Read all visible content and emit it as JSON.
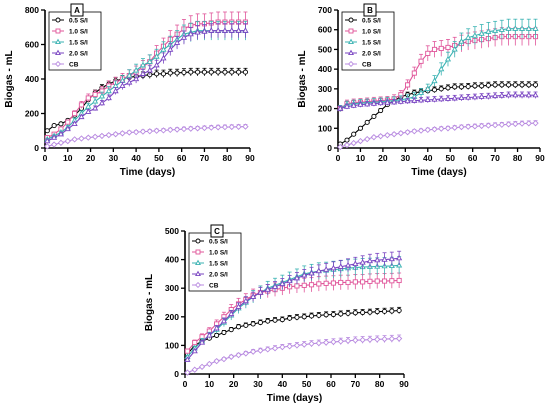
{
  "chart_data": [
    {
      "type": "line",
      "panel_label": "A",
      "xlabel": "Time (days)",
      "ylabel": "Biogas - mL",
      "xlim": [
        0,
        90
      ],
      "ylim": [
        0,
        800
      ],
      "xticks": [
        0,
        10,
        20,
        30,
        40,
        50,
        60,
        70,
        80,
        90
      ],
      "yticks": [
        0,
        200,
        400,
        600,
        800
      ],
      "legend_position": "top-left",
      "grid": false,
      "series": [
        {
          "name": "0.5 S/l",
          "color": "#000000",
          "x": [
            1,
            4,
            7,
            10,
            13,
            16,
            19,
            22,
            25,
            28,
            31,
            34,
            37,
            40,
            43,
            46,
            49,
            52,
            55,
            58,
            61,
            64,
            67,
            70,
            73,
            76,
            79,
            82,
            85,
            88
          ],
          "y": [
            100,
            130,
            140,
            160,
            190,
            230,
            280,
            320,
            350,
            370,
            390,
            400,
            410,
            415,
            420,
            425,
            430,
            430,
            435,
            435,
            438,
            440,
            440,
            440,
            440,
            440,
            440,
            440,
            440,
            440
          ]
        },
        {
          "name": "1.0 S/l",
          "color": "#e0559a",
          "x": [
            1,
            4,
            7,
            10,
            13,
            16,
            19,
            22,
            25,
            28,
            31,
            34,
            37,
            40,
            43,
            46,
            49,
            52,
            55,
            58,
            61,
            64,
            67,
            70,
            73,
            76,
            79,
            82,
            85,
            88
          ],
          "y": [
            60,
            80,
            110,
            150,
            200,
            250,
            290,
            310,
            330,
            360,
            380,
            400,
            420,
            440,
            470,
            500,
            550,
            590,
            630,
            660,
            690,
            710,
            720,
            720,
            725,
            730,
            730,
            730,
            730,
            730
          ]
        },
        {
          "name": "1.5 S/l",
          "color": "#3bb3b3",
          "x": [
            1,
            4,
            7,
            10,
            13,
            16,
            19,
            22,
            25,
            28,
            31,
            34,
            37,
            40,
            43,
            46,
            49,
            52,
            55,
            58,
            61,
            64,
            67,
            70,
            73,
            76,
            79,
            82,
            85,
            88
          ],
          "y": [
            50,
            70,
            90,
            120,
            160,
            200,
            240,
            270,
            300,
            330,
            360,
            390,
            420,
            450,
            480,
            500,
            530,
            570,
            600,
            630,
            660,
            670,
            680,
            680,
            680,
            680,
            680,
            680,
            680,
            680
          ]
        },
        {
          "name": "2.0 S/l",
          "color": "#7a45c2",
          "x": [
            1,
            4,
            7,
            10,
            13,
            16,
            19,
            22,
            25,
            28,
            31,
            34,
            37,
            40,
            43,
            46,
            49,
            52,
            55,
            58,
            61,
            64,
            67,
            70,
            73,
            76,
            79,
            82,
            85,
            88
          ],
          "y": [
            40,
            60,
            80,
            110,
            140,
            180,
            210,
            230,
            260,
            290,
            330,
            360,
            380,
            400,
            430,
            450,
            480,
            520,
            570,
            610,
            640,
            660,
            670,
            675,
            680,
            680,
            680,
            680,
            680,
            680
          ]
        },
        {
          "name": "CB",
          "color": "#b88ae0",
          "x": [
            1,
            4,
            7,
            10,
            13,
            16,
            19,
            22,
            25,
            28,
            31,
            34,
            37,
            40,
            43,
            46,
            49,
            52,
            55,
            58,
            61,
            64,
            67,
            70,
            73,
            76,
            79,
            82,
            85,
            88
          ],
          "y": [
            10,
            20,
            30,
            40,
            50,
            55,
            60,
            65,
            70,
            75,
            80,
            85,
            90,
            92,
            95,
            97,
            100,
            102,
            105,
            107,
            110,
            112,
            114,
            116,
            118,
            120,
            121,
            122,
            123,
            124
          ]
        }
      ]
    },
    {
      "type": "line",
      "panel_label": "B",
      "xlabel": "Time (days)",
      "ylabel": "Biogas - mL",
      "xlim": [
        0,
        90
      ],
      "ylim": [
        0,
        700
      ],
      "xticks": [
        0,
        10,
        20,
        30,
        40,
        50,
        60,
        70,
        80,
        90
      ],
      "yticks": [
        0,
        100,
        200,
        300,
        400,
        500,
        600,
        700
      ],
      "legend_position": "top-left",
      "grid": false,
      "series": [
        {
          "name": "0.5 S/l",
          "color": "#000000",
          "x": [
            1,
            4,
            7,
            10,
            13,
            16,
            19,
            22,
            25,
            28,
            31,
            34,
            37,
            40,
            43,
            46,
            49,
            52,
            55,
            58,
            61,
            64,
            67,
            70,
            73,
            76,
            79,
            82,
            85,
            88
          ],
          "y": [
            20,
            40,
            70,
            100,
            130,
            160,
            190,
            220,
            240,
            260,
            270,
            280,
            285,
            290,
            295,
            300,
            305,
            310,
            310,
            312,
            315,
            315,
            318,
            320,
            320,
            320,
            320,
            320,
            320,
            320
          ]
        },
        {
          "name": "1.0 S/l",
          "color": "#e0559a",
          "x": [
            1,
            4,
            7,
            10,
            13,
            16,
            19,
            22,
            25,
            28,
            31,
            34,
            37,
            40,
            43,
            46,
            49,
            52,
            55,
            58,
            61,
            64,
            67,
            70,
            73,
            76,
            79,
            82,
            85,
            88
          ],
          "y": [
            200,
            225,
            230,
            232,
            235,
            238,
            240,
            242,
            250,
            270,
            320,
            380,
            440,
            480,
            500,
            505,
            510,
            520,
            530,
            540,
            545,
            550,
            555,
            560,
            565,
            565,
            565,
            565,
            565,
            565
          ]
        },
        {
          "name": "1.5 S/l",
          "color": "#3bb3b3",
          "x": [
            1,
            4,
            7,
            10,
            13,
            16,
            19,
            22,
            25,
            28,
            31,
            34,
            37,
            40,
            43,
            46,
            49,
            52,
            55,
            58,
            61,
            64,
            67,
            70,
            73,
            76,
            79,
            82,
            85,
            88
          ],
          "y": [
            200,
            220,
            225,
            228,
            230,
            232,
            235,
            238,
            240,
            245,
            250,
            260,
            280,
            300,
            340,
            400,
            450,
            500,
            540,
            560,
            570,
            580,
            590,
            595,
            600,
            605,
            605,
            605,
            605,
            605
          ]
        },
        {
          "name": "2.0 S/l",
          "color": "#7a45c2",
          "x": [
            1,
            4,
            7,
            10,
            13,
            16,
            19,
            22,
            25,
            28,
            31,
            34,
            37,
            40,
            43,
            46,
            49,
            52,
            55,
            58,
            61,
            64,
            67,
            70,
            73,
            76,
            79,
            82,
            85,
            88
          ],
          "y": [
            200,
            210,
            215,
            220,
            222,
            225,
            228,
            230,
            232,
            235,
            238,
            240,
            242,
            244,
            246,
            248,
            250,
            252,
            254,
            256,
            258,
            260,
            262,
            264,
            266,
            268,
            268,
            268,
            268,
            268
          ]
        },
        {
          "name": "CB",
          "color": "#b88ae0",
          "x": [
            1,
            4,
            7,
            10,
            13,
            16,
            19,
            22,
            25,
            28,
            31,
            34,
            37,
            40,
            43,
            46,
            49,
            52,
            55,
            58,
            61,
            64,
            67,
            70,
            73,
            76,
            79,
            82,
            85,
            88
          ],
          "y": [
            5,
            15,
            25,
            35,
            45,
            55,
            60,
            65,
            70,
            75,
            80,
            85,
            88,
            92,
            95,
            98,
            100,
            103,
            106,
            108,
            110,
            112,
            114,
            116,
            118,
            120,
            122,
            124,
            125,
            126
          ]
        }
      ]
    },
    {
      "type": "line",
      "panel_label": "C",
      "xlabel": "Time (days)",
      "ylabel": "Biogas - mL",
      "xlim": [
        0,
        90
      ],
      "ylim": [
        0,
        500
      ],
      "xticks": [
        0,
        10,
        20,
        30,
        40,
        50,
        60,
        70,
        80,
        90
      ],
      "yticks": [
        0,
        100,
        200,
        300,
        400,
        500
      ],
      "legend_position": "top-left",
      "grid": false,
      "series": [
        {
          "name": "0.5 S/l",
          "color": "#000000",
          "x": [
            1,
            4,
            7,
            10,
            13,
            16,
            19,
            22,
            25,
            28,
            31,
            34,
            37,
            40,
            43,
            46,
            49,
            52,
            55,
            58,
            61,
            64,
            67,
            70,
            73,
            76,
            79,
            82,
            85,
            88
          ],
          "y": [
            70,
            100,
            115,
            125,
            135,
            145,
            155,
            165,
            170,
            175,
            180,
            185,
            188,
            190,
            195,
            198,
            200,
            203,
            205,
            207,
            208,
            210,
            212,
            214,
            215,
            216,
            218,
            219,
            220,
            222
          ]
        },
        {
          "name": "1.0 S/l",
          "color": "#e0559a",
          "x": [
            1,
            4,
            7,
            10,
            13,
            16,
            19,
            22,
            25,
            28,
            31,
            34,
            37,
            40,
            43,
            46,
            49,
            52,
            55,
            58,
            61,
            64,
            67,
            70,
            73,
            76,
            79,
            82,
            85,
            88
          ],
          "y": [
            80,
            110,
            130,
            150,
            175,
            200,
            225,
            245,
            260,
            275,
            285,
            290,
            295,
            300,
            305,
            308,
            310,
            312,
            315,
            317,
            318,
            320,
            320,
            322,
            322,
            324,
            325,
            325,
            326,
            327
          ]
        },
        {
          "name": "1.5 S/l",
          "color": "#3bb3b3",
          "x": [
            1,
            4,
            7,
            10,
            13,
            16,
            19,
            22,
            25,
            28,
            31,
            34,
            37,
            40,
            43,
            46,
            49,
            52,
            55,
            58,
            61,
            64,
            67,
            70,
            73,
            76,
            79,
            82,
            85,
            88
          ],
          "y": [
            60,
            90,
            115,
            135,
            155,
            180,
            205,
            230,
            250,
            270,
            285,
            300,
            310,
            320,
            330,
            340,
            350,
            355,
            360,
            362,
            365,
            367,
            370,
            372,
            374,
            375,
            376,
            377,
            378,
            380
          ]
        },
        {
          "name": "2.0 S/l",
          "color": "#7a45c2",
          "x": [
            1,
            4,
            7,
            10,
            13,
            16,
            19,
            22,
            25,
            28,
            31,
            34,
            37,
            40,
            43,
            46,
            49,
            52,
            55,
            58,
            61,
            64,
            67,
            70,
            73,
            76,
            79,
            82,
            85,
            88
          ],
          "y": [
            50,
            80,
            110,
            135,
            160,
            185,
            210,
            235,
            255,
            270,
            285,
            295,
            305,
            315,
            325,
            335,
            345,
            352,
            360,
            365,
            370,
            375,
            380,
            385,
            390,
            395,
            398,
            400,
            402,
            405
          ]
        },
        {
          "name": "CB",
          "color": "#b88ae0",
          "x": [
            1,
            4,
            7,
            10,
            13,
            16,
            19,
            22,
            25,
            28,
            31,
            34,
            37,
            40,
            43,
            46,
            49,
            52,
            55,
            58,
            61,
            64,
            67,
            70,
            73,
            76,
            79,
            82,
            85,
            88
          ],
          "y": [
            5,
            15,
            25,
            35,
            45,
            52,
            60,
            66,
            72,
            78,
            82,
            86,
            90,
            94,
            97,
            100,
            103,
            106,
            108,
            110,
            112,
            114,
            116,
            118,
            119,
            120,
            121,
            122,
            123,
            124
          ]
        }
      ]
    }
  ]
}
